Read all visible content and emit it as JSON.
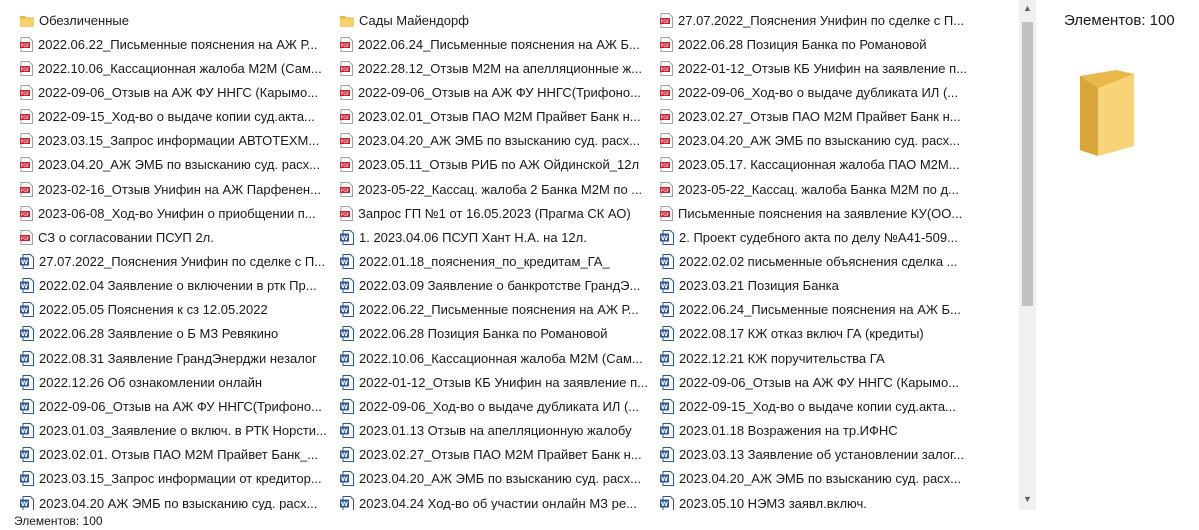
{
  "files": {
    "columns": [
      [
        {
          "name": "Обезличенные",
          "icon": "folder"
        },
        {
          "name": "2022.06.22_Письменные пояснения на АЖ Р...",
          "icon": "pdf"
        },
        {
          "name": "2022.10.06_Кассационная жалоба М2М (Сам...",
          "icon": "pdf"
        },
        {
          "name": "2022-09-06_Отзыв на АЖ ФУ ННГС (Карымо...",
          "icon": "pdf"
        },
        {
          "name": "2022-09-15_Ход-во о выдаче копии суд.акта...",
          "icon": "pdf"
        },
        {
          "name": "2023.03.15_Запрос информации АВТОТЕХМ...",
          "icon": "pdf"
        },
        {
          "name": "2023.04.20_АЖ ЭМБ по взысканию суд. расх...",
          "icon": "pdf"
        },
        {
          "name": "2023-02-16_Отзыв Унифин на АЖ Парфенен...",
          "icon": "pdf"
        },
        {
          "name": "2023-06-08_Ход-во Унифин о приобщении п...",
          "icon": "pdf"
        },
        {
          "name": "СЗ о согласовании ПСУП 2л.",
          "icon": "pdf"
        },
        {
          "name": "27.07.2022_Пояснения Унифин по сделке с П...",
          "icon": "word"
        },
        {
          "name": "2022.02.04 Заявление о включении в ртк Пр...",
          "icon": "word"
        },
        {
          "name": "2022.05.05 Пояснения к сз 12.05.2022",
          "icon": "word"
        },
        {
          "name": "2022.06.28 Заявление о Б МЗ Ревякино",
          "icon": "word"
        },
        {
          "name": "2022.08.31 Заявление  ГрандЭнерджи незалог",
          "icon": "word"
        },
        {
          "name": "2022.12.26 Об ознакомлении онлайн",
          "icon": "word"
        },
        {
          "name": "2022-09-06_Отзыв на АЖ ФУ ННГС(Трифоно...",
          "icon": "word"
        },
        {
          "name": "2023.01.03_Заявление о включ. в РТК Норсти...",
          "icon": "word"
        },
        {
          "name": "2023.02.01. Отзыв ПАО М2М Прайвет Банк_...",
          "icon": "word"
        },
        {
          "name": "2023.03.15_Запрос информации от кредитор...",
          "icon": "word"
        },
        {
          "name": "2023.04.20 АЖ ЭМБ по взысканию суд. расх...",
          "icon": "word"
        }
      ],
      [
        {
          "name": "Сады Майендорф",
          "icon": "folder"
        },
        {
          "name": "2022.06.24_Письменные пояснения на АЖ Б...",
          "icon": "pdf"
        },
        {
          "name": "2022.28.12_Отзыв М2М на апелляционные ж...",
          "icon": "pdf"
        },
        {
          "name": "2022-09-06_Отзыв на АЖ ФУ ННГС(Трифоно...",
          "icon": "pdf"
        },
        {
          "name": "2023.02.01_Отзыв ПАО М2М Прайвет Банк н...",
          "icon": "pdf"
        },
        {
          "name": "2023.04.20_АЖ ЭМБ по взысканию суд. расх...",
          "icon": "pdf"
        },
        {
          "name": "2023.05.11_Отзыв РИБ по АЖ Ойдинской_12л",
          "icon": "pdf"
        },
        {
          "name": "2023-05-22_Кассац. жалоба 2 Банка М2М по ...",
          "icon": "pdf"
        },
        {
          "name": "Запрос ГП №1 от 16.05.2023 (Прагма СК АО)",
          "icon": "pdf"
        },
        {
          "name": "1. 2023.04.06 ПСУП Хант Н.А. на 12л.",
          "icon": "word"
        },
        {
          "name": "2022.01.18_пояснения_по_кредитам_ГА_",
          "icon": "word"
        },
        {
          "name": "2022.03.09 Заявление о банкротстве ГрандЭ...",
          "icon": "word"
        },
        {
          "name": "2022.06.22_Письменные пояснения на АЖ Р...",
          "icon": "word"
        },
        {
          "name": "2022.06.28 Позиция Банка по Романовой",
          "icon": "word"
        },
        {
          "name": "2022.10.06_Кассационная жалоба М2М (Сам...",
          "icon": "word"
        },
        {
          "name": "2022-01-12_Отзыв КБ Унифин на заявление п...",
          "icon": "word"
        },
        {
          "name": "2022-09-06_Ход-во о выдаче дубликата ИЛ (...",
          "icon": "word"
        },
        {
          "name": "2023.01.13 Отзыв на апелляционную жалобу",
          "icon": "word"
        },
        {
          "name": "2023.02.27_Отзыв ПАО М2М Прайвет Банк н...",
          "icon": "word"
        },
        {
          "name": "2023.04.20_АЖ ЭМБ по взысканию суд. расх...",
          "icon": "word"
        },
        {
          "name": "2023.04.24 Ход-во об участии онлайн МЗ ре...",
          "icon": "word"
        }
      ],
      [
        {
          "name": "27.07.2022_Пояснения Унифин по сделке с П...",
          "icon": "pdf"
        },
        {
          "name": "2022.06.28 Позиция Банка по Романовой",
          "icon": "pdf"
        },
        {
          "name": "2022-01-12_Отзыв КБ Унифин на заявление п...",
          "icon": "pdf"
        },
        {
          "name": "2022-09-06_Ход-во о выдаче дубликата ИЛ (...",
          "icon": "pdf"
        },
        {
          "name": "2023.02.27_Отзыв ПАО М2М Прайвет Банк н...",
          "icon": "pdf"
        },
        {
          "name": "2023.04.20_АЖ ЭМБ по взысканию суд. расх...",
          "icon": "pdf"
        },
        {
          "name": "2023.05.17. Кассационная жалоба ПАО М2М...",
          "icon": "pdf"
        },
        {
          "name": "2023-05-22_Кассац. жалоба Банка М2М по д...",
          "icon": "pdf"
        },
        {
          "name": "Письменные пояснения на заявление КУ(ОО...",
          "icon": "pdf"
        },
        {
          "name": "2. Проект судебного акта по делу №А41-509...",
          "icon": "word"
        },
        {
          "name": "2022.02.02 письменные объяснения сделка ...",
          "icon": "word"
        },
        {
          "name": "2023.03.21 Позиция Банка",
          "icon": "word"
        },
        {
          "name": "2022.06.24_Письменные пояснения на АЖ Б...",
          "icon": "word"
        },
        {
          "name": "2022.08.17 КЖ отказ включ ГА (кредиты)",
          "icon": "word"
        },
        {
          "name": "2022.12.21 КЖ поручительства ГА",
          "icon": "word"
        },
        {
          "name": "2022-09-06_Отзыв на АЖ ФУ ННГС (Карымо...",
          "icon": "word"
        },
        {
          "name": "2022-09-15_Ход-во о выдаче копии суд.акта...",
          "icon": "word"
        },
        {
          "name": "2023.01.18 Возражения на тр.ИФНС",
          "icon": "word"
        },
        {
          "name": "2023.03.13 Заявление об установлении залог...",
          "icon": "word"
        },
        {
          "name": "2023.04.20_АЖ ЭМБ по взысканию суд. расх...",
          "icon": "word"
        },
        {
          "name": "2023.05.10 НЭМЗ заявл.включ.",
          "icon": "word"
        }
      ]
    ]
  },
  "details_pane": {
    "count": "Элементов: 100"
  },
  "status_bar": {
    "count": "Элементов: 100"
  }
}
